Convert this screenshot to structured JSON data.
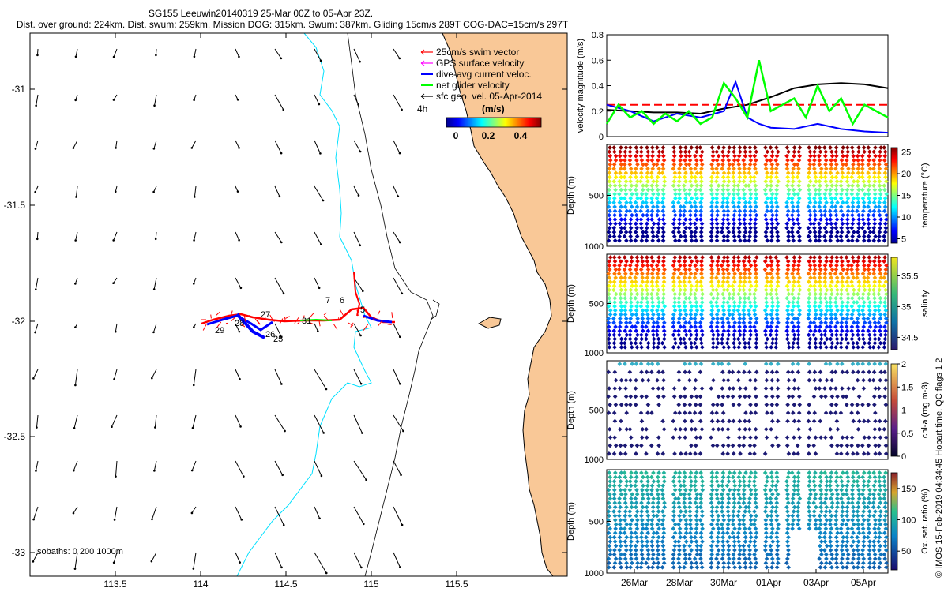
{
  "header": {
    "title_line1": "SG155 Leeuwin20140319 25-Mar 00Z to 05-Apr 23Z.",
    "title_line2": "Dist. over ground: 224km. Dist. swum: 259km. Mission DOG: 315km. Swum: 387km. Gliding 15cm/s 289T COG-DAC=15cm/s 297T"
  },
  "colors": {
    "land": "#f9c897",
    "isobath_200": "#00e0ff",
    "swim_vector": "#ff0000",
    "gps_velocity": "#ff00ff",
    "dive_avg": "#0000ff",
    "net_velocity": "#00ff00",
    "sfc_geo": "#000000"
  },
  "map": {
    "x_ticks": [
      "113.5",
      "114",
      "114.5",
      "115",
      "115.5"
    ],
    "y_ticks": [
      "-31",
      "-31.5",
      "-32",
      "-32.5",
      "-33"
    ],
    "legend": [
      {
        "label": "25cm/s swim vector",
        "color": "#ff0000",
        "icon": "arrow-icon"
      },
      {
        "label": "GPS surface velocity",
        "color": "#ff00ff",
        "icon": "arrow-icon"
      },
      {
        "label": "dive-avg current veloc.",
        "color": "#0000ff",
        "icon": "line-icon"
      },
      {
        "label": "net glider velocity",
        "color": "#00ff00",
        "icon": "line-icon"
      },
      {
        "label": "sfc geo. vel. 05-Apr-2014",
        "color": "#000000",
        "icon": "arrow-icon"
      }
    ],
    "legend_4h": "4h",
    "colorbar_unit": "(m/s)",
    "colorbar_ticks": [
      "0",
      "0.2",
      "0.4"
    ],
    "isobaths_label": "Isobaths: 0   200  1000m",
    "track_labels": [
      "7",
      "6",
      "5",
      "31",
      "29",
      "28",
      "27",
      "26",
      "25"
    ]
  },
  "chart_data": [
    {
      "type": "line",
      "title": "",
      "ylabel": "velocity magnitude (m/s)",
      "ylim": [
        0,
        0.8
      ],
      "y_ticks": [
        "0",
        "0.2",
        "0.4",
        "0.6",
        "0.8"
      ],
      "x_range_days": [
        0,
        12
      ],
      "series": [
        {
          "name": "black",
          "color": "#000000",
          "x": [
            0,
            1,
            2,
            3,
            4,
            5,
            6,
            7,
            8,
            9,
            10,
            11,
            12
          ],
          "y": [
            0.21,
            0.2,
            0.19,
            0.19,
            0.18,
            0.22,
            0.25,
            0.31,
            0.38,
            0.41,
            0.42,
            0.41,
            0.38
          ]
        },
        {
          "name": "red-dashed",
          "color": "#ff0000",
          "x": [
            0,
            12
          ],
          "y": [
            0.25,
            0.25
          ]
        },
        {
          "name": "blue",
          "color": "#0000ff",
          "x": [
            0,
            1,
            2,
            3,
            4,
            5,
            5.5,
            6,
            6.5,
            7,
            8,
            9,
            10,
            11,
            12
          ],
          "y": [
            0.25,
            0.2,
            0.12,
            0.18,
            0.15,
            0.2,
            0.43,
            0.15,
            0.1,
            0.07,
            0.06,
            0.1,
            0.06,
            0.04,
            0.03
          ]
        },
        {
          "name": "green",
          "color": "#00ff00",
          "x": [
            0,
            0.5,
            1,
            1.5,
            2,
            2.5,
            3,
            3.5,
            4,
            4.5,
            5,
            5.5,
            6,
            6.5,
            7,
            7.5,
            8,
            8.5,
            9,
            9.5,
            10,
            10.5,
            11,
            11.5,
            12
          ],
          "y": [
            0.1,
            0.25,
            0.15,
            0.2,
            0.1,
            0.18,
            0.12,
            0.2,
            0.1,
            0.15,
            0.42,
            0.3,
            0.15,
            0.6,
            0.2,
            0.25,
            0.3,
            0.15,
            0.4,
            0.2,
            0.3,
            0.1,
            0.25,
            0.2,
            0.15
          ]
        }
      ]
    },
    {
      "type": "scatter",
      "ylabel": "Depth (m)",
      "colorbar_label": "temperature (°C)",
      "colorbar_ticks": [
        "5",
        "10",
        "15",
        "20",
        "25"
      ],
      "y_ticks": [
        "500",
        "1000"
      ],
      "clim": [
        4,
        26
      ]
    },
    {
      "type": "scatter",
      "ylabel": "Depth (m)",
      "colorbar_label": "salinity",
      "colorbar_ticks": [
        "34.5",
        "35",
        "35.5"
      ],
      "y_ticks": [
        "500",
        "1000"
      ],
      "clim": [
        34.3,
        35.8
      ]
    },
    {
      "type": "scatter",
      "ylabel": "Depth (m)",
      "colorbar_label": "chl-a (mg m-3)",
      "colorbar_ticks": [
        "0",
        "0.5",
        "1",
        "1.5",
        "2"
      ],
      "y_ticks": [
        "500",
        "1000"
      ],
      "clim": [
        0,
        2
      ]
    },
    {
      "type": "scatter",
      "ylabel": "Depth (m)",
      "colorbar_label": "Ox. sat. ratio (%)",
      "colorbar_ticks": [
        "50",
        "100",
        "150"
      ],
      "y_ticks": [
        "500",
        "1000"
      ],
      "x_ticks": [
        "26Mar",
        "28Mar",
        "30Mar",
        "01Apr",
        "03Apr",
        "05Apr"
      ],
      "clim": [
        20,
        175
      ]
    }
  ],
  "footer": {
    "side_note": "© IMOS 15-Feb-2019 04:34:45 Hobart time. QC flags 1  2"
  }
}
